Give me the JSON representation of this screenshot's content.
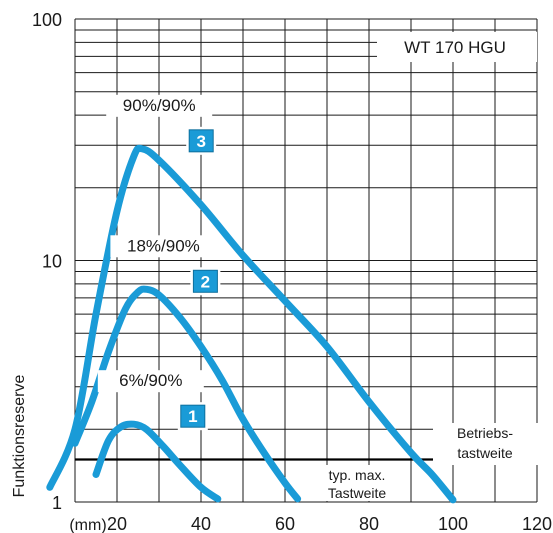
{
  "chart_data": {
    "type": "line",
    "ylabel": "Funktionsreserve",
    "x_unit": "(mm)",
    "y_scale": "log",
    "xlim": [
      10,
      120
    ],
    "ylim": [
      1,
      100
    ],
    "x_ticks": [
      "20",
      "40",
      "60",
      "80",
      "100",
      "120"
    ],
    "y_ticks": [
      "1",
      "10",
      "100"
    ],
    "grid": true,
    "legend_box": "WT 170 HGU",
    "series": [
      {
        "name": "90%/90%",
        "badge": "3",
        "color": "#1a9bd7",
        "points": [
          [
            4,
            1.15
          ],
          [
            10,
            2.0
          ],
          [
            15,
            6.0
          ],
          [
            20,
            16
          ],
          [
            24,
            27
          ],
          [
            26,
            29
          ],
          [
            30,
            26
          ],
          [
            40,
            17
          ],
          [
            50,
            10.5
          ],
          [
            60,
            6.8
          ],
          [
            70,
            4.4
          ],
          [
            80,
            2.6
          ],
          [
            90,
            1.6
          ],
          [
            95,
            1.3
          ],
          [
            100,
            1.02
          ]
        ]
      },
      {
        "name": "18%/90%",
        "badge": "2",
        "color": "#1a9bd7",
        "points": [
          [
            10,
            1.75
          ],
          [
            14,
            2.6
          ],
          [
            18,
            4.2
          ],
          [
            22,
            6.3
          ],
          [
            25,
            7.4
          ],
          [
            27,
            7.6
          ],
          [
            30,
            7.2
          ],
          [
            35,
            5.8
          ],
          [
            40,
            4.4
          ],
          [
            45,
            3.2
          ],
          [
            50,
            2.2
          ],
          [
            55,
            1.6
          ],
          [
            60,
            1.2
          ],
          [
            63,
            1.03
          ]
        ]
      },
      {
        "name": "6%/90%",
        "badge": "1",
        "color": "#1a9bd7",
        "points": [
          [
            15,
            1.3
          ],
          [
            18,
            1.8
          ],
          [
            21,
            2.05
          ],
          [
            24,
            2.1
          ],
          [
            27,
            2.0
          ],
          [
            31,
            1.7
          ],
          [
            35,
            1.42
          ],
          [
            40,
            1.15
          ],
          [
            44,
            1.03
          ]
        ]
      }
    ],
    "reference_lines": [
      {
        "y": 1.5,
        "label_top": "Betriebs-",
        "label_bottom": "tastweite"
      }
    ],
    "annotation": {
      "line1": "typ. max.",
      "line2": "Tastweite"
    }
  }
}
